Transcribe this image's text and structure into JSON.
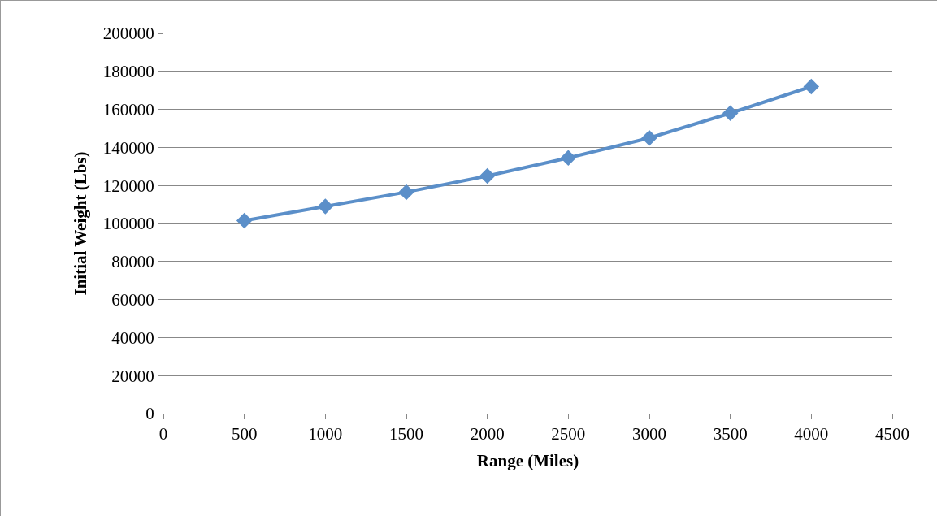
{
  "chart_data": {
    "type": "line",
    "xlabel": "Range (Miles)",
    "ylabel": "Initial Weight (Lbs)",
    "x": [
      500,
      1000,
      1500,
      2000,
      2500,
      3000,
      3500,
      4000
    ],
    "series": [
      {
        "color": "#5b8fc9",
        "values": [
          101500,
          109000,
          116500,
          125000,
          134500,
          145000,
          158000,
          172000
        ]
      }
    ],
    "xlim": [
      0,
      4500
    ],
    "xticks": [
      0,
      500,
      1000,
      1500,
      2000,
      2500,
      3000,
      3500,
      4000,
      4500
    ],
    "ylim": [
      0,
      200000
    ],
    "yticks": [
      0,
      20000,
      40000,
      60000,
      80000,
      100000,
      120000,
      140000,
      160000,
      180000,
      200000
    ],
    "grid": "y",
    "legend": false,
    "marker": "diamond",
    "line_style": "solid"
  }
}
